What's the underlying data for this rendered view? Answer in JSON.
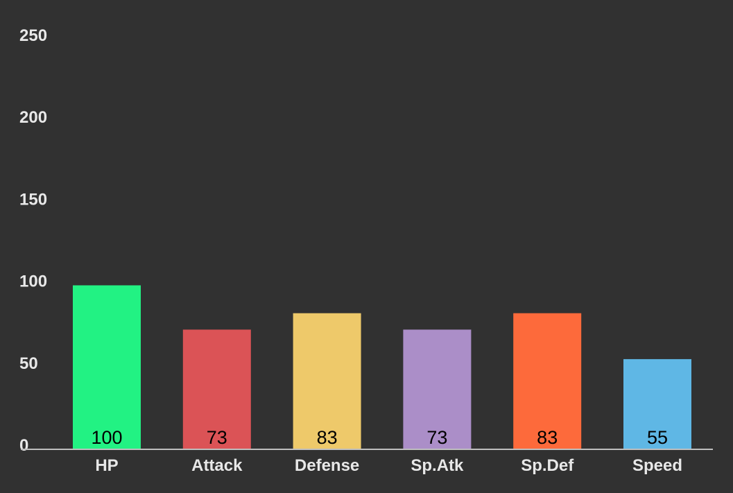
{
  "chart_data": {
    "type": "bar",
    "categories": [
      "HP",
      "Attack",
      "Defense",
      "Sp.Atk",
      "Sp.Def",
      "Speed"
    ],
    "values": [
      100,
      73,
      83,
      73,
      83,
      55
    ],
    "data_labels": [
      "100",
      "73",
      "83",
      "73",
      "83",
      "55"
    ],
    "colors": [
      "#22f283",
      "#db5356",
      "#eec96a",
      "#ab8ec8",
      "#fd6a3b",
      "#5fb7e5"
    ],
    "yticks": [
      "0",
      "50",
      "100",
      "150",
      "200",
      "250"
    ],
    "ylim": [
      0,
      255
    ],
    "grid": false,
    "background": "#313131",
    "axis_color": "#bfbfbf",
    "title": "",
    "xlabel": "",
    "ylabel": ""
  }
}
